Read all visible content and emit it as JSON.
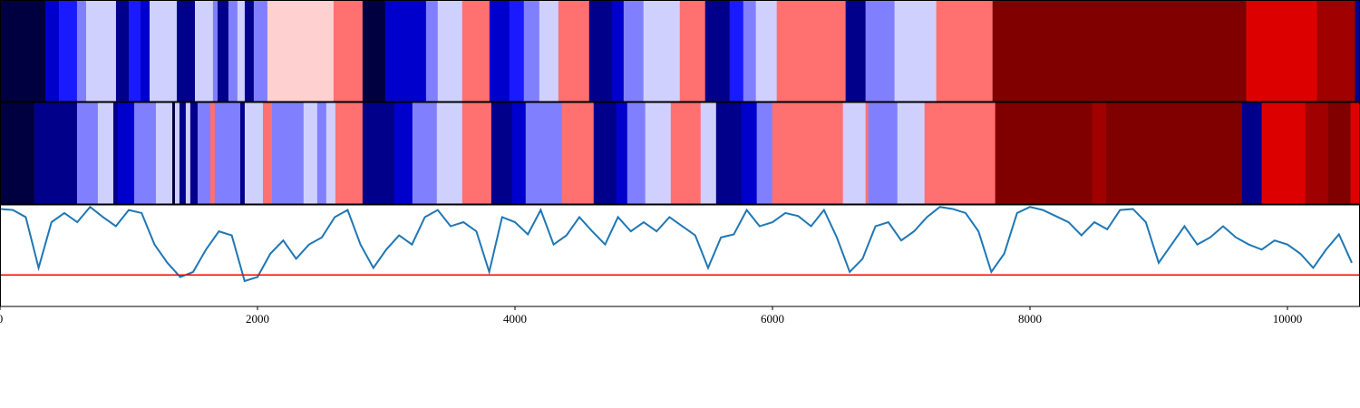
{
  "chart_data": [
    {
      "type": "heatmap",
      "palette": [
        "#000040",
        "#00008b",
        "#0000cc",
        "#1a1aff",
        "#8080ff",
        "#d0d0ff",
        "#ffd0d0",
        "#ff7070",
        "#dd0000",
        "#a00000",
        "#800000"
      ],
      "edges": [
        0,
        352,
        458,
        598,
        669,
        901,
        1000,
        1091,
        1162,
        1373,
        1514,
        1654,
        1690,
        1774,
        1844,
        1901,
        1971,
        2077,
        2591,
        2816,
        2992,
        3309,
        3400,
        3590,
        3802,
        3956,
        4069,
        4189,
        4337,
        4576,
        4752,
        4844,
        4998,
        5280,
        5477,
        5667,
        5773,
        5871,
        6033,
        6568,
        6723,
        6948,
        7272,
        7709,
        9680,
        10229,
        10525,
        10560
      ],
      "states": [
        0,
        2,
        3,
        4,
        5,
        1,
        3,
        2,
        5,
        1,
        5,
        4,
        1,
        4,
        5,
        1,
        4,
        6,
        7,
        0,
        2,
        4,
        5,
        7,
        2,
        3,
        4,
        5,
        7,
        1,
        2,
        4,
        5,
        7,
        1,
        3,
        4,
        5,
        7,
        1,
        4,
        5,
        7,
        10,
        8,
        9,
        1
      ],
      "xlim": [
        0,
        10560
      ]
    },
    {
      "type": "heatmap",
      "palette": [
        "#000040",
        "#00008b",
        "#0000cc",
        "#1a1aff",
        "#8080ff",
        "#d0d0ff",
        "#ffd0d0",
        "#ff7070",
        "#dd0000",
        "#a00000",
        "#800000"
      ],
      "edges": [
        0,
        268,
        598,
        760,
        880,
        915,
        1042,
        1211,
        1338,
        1359,
        1394,
        1443,
        1478,
        1535,
        1633,
        1668,
        1866,
        1901,
        2042,
        2112,
        2358,
        2464,
        2534,
        2605,
        2816,
        3062,
        3203,
        3393,
        3590,
        3816,
        3978,
        4083,
        4365,
        4611,
        4787,
        4872,
        5012,
        5210,
        5442,
        5562,
        5759,
        5878,
        5998,
        6547,
        6723,
        6744,
        6970,
        7181,
        7730,
        8483,
        8589,
        9645,
        9800,
        10138,
        10314,
        10490,
        10560
      ],
      "states": [
        0,
        1,
        4,
        5,
        1,
        2,
        4,
        5,
        0,
        5,
        1,
        5,
        1,
        4,
        7,
        4,
        1,
        5,
        7,
        4,
        5,
        4,
        5,
        7,
        1,
        2,
        4,
        5,
        7,
        1,
        2,
        4,
        7,
        1,
        2,
        4,
        5,
        7,
        5,
        1,
        2,
        4,
        7,
        5,
        7,
        4,
        5,
        7,
        10,
        9,
        10,
        1,
        8,
        9,
        10,
        8
      ],
      "xlim": [
        0,
        10560
      ]
    },
    {
      "type": "line",
      "x": [
        0,
        100,
        200,
        300,
        400,
        500,
        600,
        700,
        800,
        900,
        1000,
        1100,
        1200,
        1300,
        1400,
        1500,
        1600,
        1700,
        1800,
        1900,
        2000,
        2100,
        2200,
        2300,
        2400,
        2500,
        2600,
        2700,
        2800,
        2900,
        3000,
        3100,
        3200,
        3300,
        3400,
        3500,
        3600,
        3700,
        3800,
        3900,
        4000,
        4100,
        4200,
        4300,
        4400,
        4500,
        4600,
        4700,
        4800,
        4900,
        5000,
        5100,
        5200,
        5300,
        5400,
        5500,
        5600,
        5700,
        5800,
        5900,
        6000,
        6100,
        6200,
        6300,
        6400,
        6500,
        6600,
        6700,
        6800,
        6900,
        7000,
        7100,
        7200,
        7300,
        7400,
        7500,
        7600,
        7700,
        7800,
        7900,
        8000,
        8100,
        8200,
        8300,
        8400,
        8500,
        8600,
        8700,
        8800,
        8900,
        9000,
        9100,
        9200,
        9300,
        9400,
        9500,
        9600,
        9700,
        9800,
        9900,
        10000,
        10100,
        10200,
        10300,
        10400,
        10500
      ],
      "values": [
        0.96,
        0.95,
        0.88,
        0.38,
        0.83,
        0.92,
        0.83,
        0.98,
        0.88,
        0.79,
        0.95,
        0.92,
        0.61,
        0.43,
        0.29,
        0.34,
        0.56,
        0.74,
        0.7,
        0.25,
        0.29,
        0.52,
        0.65,
        0.47,
        0.61,
        0.68,
        0.88,
        0.95,
        0.61,
        0.38,
        0.56,
        0.7,
        0.61,
        0.88,
        0.95,
        0.79,
        0.83,
        0.74,
        0.34,
        0.88,
        0.83,
        0.71,
        0.95,
        0.61,
        0.7,
        0.88,
        0.74,
        0.61,
        0.88,
        0.74,
        0.83,
        0.74,
        0.88,
        0.79,
        0.7,
        0.38,
        0.68,
        0.71,
        0.95,
        0.79,
        0.83,
        0.92,
        0.89,
        0.79,
        0.95,
        0.68,
        0.34,
        0.47,
        0.79,
        0.83,
        0.65,
        0.74,
        0.88,
        0.98,
        0.96,
        0.92,
        0.74,
        0.34,
        0.52,
        0.92,
        0.98,
        0.95,
        0.89,
        0.83,
        0.7,
        0.83,
        0.76,
        0.95,
        0.96,
        0.83,
        0.43,
        0.61,
        0.79,
        0.61,
        0.68,
        0.79,
        0.68,
        0.61,
        0.56,
        0.65,
        0.61,
        0.52,
        0.38,
        0.56,
        0.71,
        0.43
      ],
      "color": "#1f77b4",
      "threshold": 0.31,
      "threshold_color": "#ff0000",
      "xlim": [
        0,
        10560
      ],
      "ylim": [
        0,
        1
      ],
      "xticks": [
        0,
        2000,
        4000,
        6000,
        8000,
        10000
      ]
    }
  ]
}
